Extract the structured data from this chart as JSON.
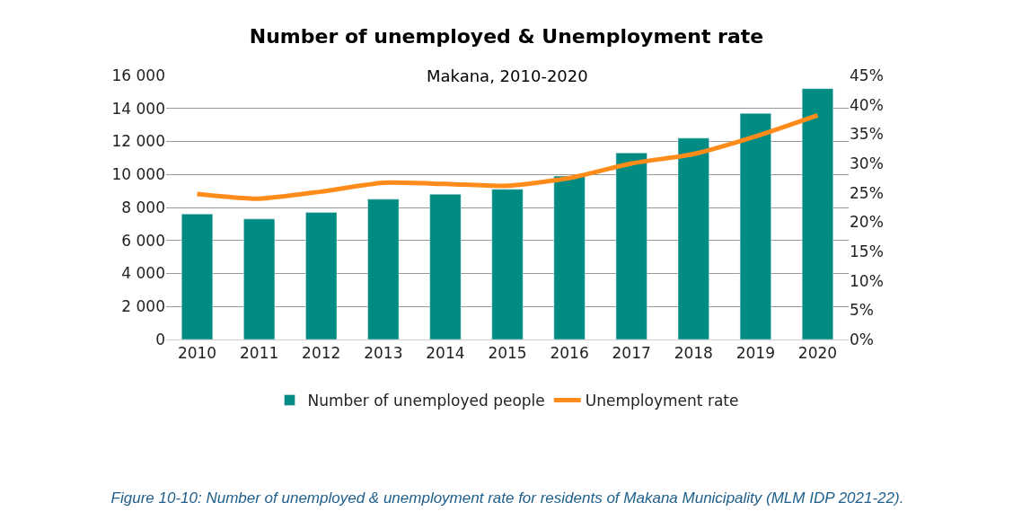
{
  "chart_data": {
    "type": "bar",
    "title": "Number of unemployed & Unemployment rate",
    "subtitle": "Makana, 2010-2020",
    "categories": [
      "2010",
      "2011",
      "2012",
      "2013",
      "2014",
      "2015",
      "2016",
      "2017",
      "2018",
      "2019",
      "2020"
    ],
    "series": [
      {
        "name": "Number of unemployed people",
        "color": "#008c82",
        "values": [
          7600,
          7300,
          7700,
          8500,
          8800,
          9100,
          9900,
          11300,
          12200,
          13700,
          15200
        ]
      },
      {
        "name": "Unemployment rate",
        "type": "line",
        "axis": "y2",
        "color": "#ff8c1a",
        "values": [
          24.8,
          24.0,
          25.2,
          26.7,
          26.5,
          26.2,
          27.5,
          30.0,
          31.6,
          34.6,
          38.2
        ]
      }
    ],
    "ylim": [
      0,
      16000
    ],
    "yticks": [
      0,
      {
        "value": 2000,
        "label": "2 000"
      },
      {
        "value": 4000,
        "label": "4 000"
      },
      {
        "value": 6000,
        "label": "6 000"
      },
      {
        "value": 8000,
        "label": "8 000"
      },
      {
        "value": 10000,
        "label": "10 000"
      },
      {
        "value": 12000,
        "label": "12 000"
      },
      {
        "value": 14000,
        "label": "14 000"
      },
      {
        "value": 16000,
        "label": "16 000"
      }
    ],
    "y2lim": [
      0,
      45
    ],
    "y2ticks": [
      {
        "value": 0,
        "label": "0%"
      },
      {
        "value": 5,
        "label": "5%"
      },
      {
        "value": 10,
        "label": "10%"
      },
      {
        "value": 15,
        "label": "15%"
      },
      {
        "value": 20,
        "label": "20%"
      },
      {
        "value": 25,
        "label": "25%"
      },
      {
        "value": 30,
        "label": "30%"
      },
      {
        "value": 35,
        "label": "35%"
      },
      {
        "value": 40,
        "label": "40%"
      },
      {
        "value": 45,
        "label": "45%"
      }
    ],
    "grid": "y",
    "legend": "bottom",
    "marker": "none",
    "line_style": "solid",
    "annotations": [
      "Figure 10-10: Number of unemployed & unemployment rate for residents of Makana Municipality (MLM IDP 2021-22)."
    ]
  }
}
